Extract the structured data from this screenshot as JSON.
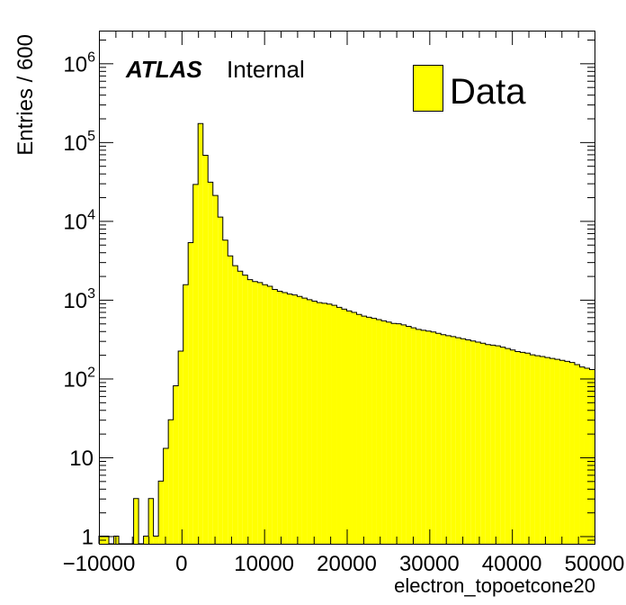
{
  "chart_data": {
    "type": "bar",
    "xlabel": "electron_topoetcone20",
    "ylabel": "Entries / 600",
    "xlim": [
      -10000,
      50000
    ],
    "ylim": [
      0.8,
      2600000
    ],
    "y_scale": "log",
    "bin_width": 600,
    "x_ticks": [
      {
        "v": -10000,
        "label": "−10000"
      },
      {
        "v": 0,
        "label": "0"
      },
      {
        "v": 10000,
        "label": "10000"
      },
      {
        "v": 20000,
        "label": "20000"
      },
      {
        "v": 30000,
        "label": "30000"
      },
      {
        "v": 40000,
        "label": "40000"
      },
      {
        "v": 50000,
        "label": "50000"
      }
    ],
    "y_ticks": [
      {
        "v": 1,
        "base": "1",
        "exp": ""
      },
      {
        "v": 10,
        "base": "10",
        "exp": ""
      },
      {
        "v": 100,
        "base": "10",
        "exp": "2"
      },
      {
        "v": 1000,
        "base": "10",
        "exp": "3"
      },
      {
        "v": 10000,
        "base": "10",
        "exp": "4"
      },
      {
        "v": 100000,
        "base": "10",
        "exp": "5"
      },
      {
        "v": 1000000,
        "base": "10",
        "exp": "6"
      }
    ],
    "fill_color": "#ffff00",
    "line_color": "#000000",
    "legend": {
      "position": "top-right",
      "label": "Data"
    },
    "annotation": {
      "bold": "ATLAS",
      "normal": "Internal"
    },
    "series": [
      {
        "name": "Data",
        "x_start": -10000,
        "values": [
          1,
          1,
          0,
          1,
          0,
          0,
          0,
          3,
          0,
          1,
          3,
          1,
          5,
          13,
          30,
          81,
          223,
          1550,
          5300,
          29000,
          172000,
          68000,
          31000,
          21000,
          11200,
          5700,
          3600,
          2700,
          2300,
          2050,
          1800,
          1700,
          1650,
          1550,
          1480,
          1350,
          1280,
          1230,
          1180,
          1150,
          1100,
          1050,
          1000,
          960,
          920,
          900,
          880,
          850,
          800,
          760,
          720,
          690,
          650,
          620,
          600,
          580,
          560,
          540,
          520,
          500,
          495,
          480,
          460,
          440,
          420,
          410,
          400,
          390,
          375,
          360,
          350,
          340,
          330,
          320,
          310,
          300,
          290,
          280,
          270,
          265,
          260,
          250,
          240,
          230,
          220,
          215,
          210,
          200,
          195,
          190,
          185,
          180,
          175,
          170,
          165,
          160,
          150,
          140,
          135,
          130
        ]
      }
    ]
  }
}
